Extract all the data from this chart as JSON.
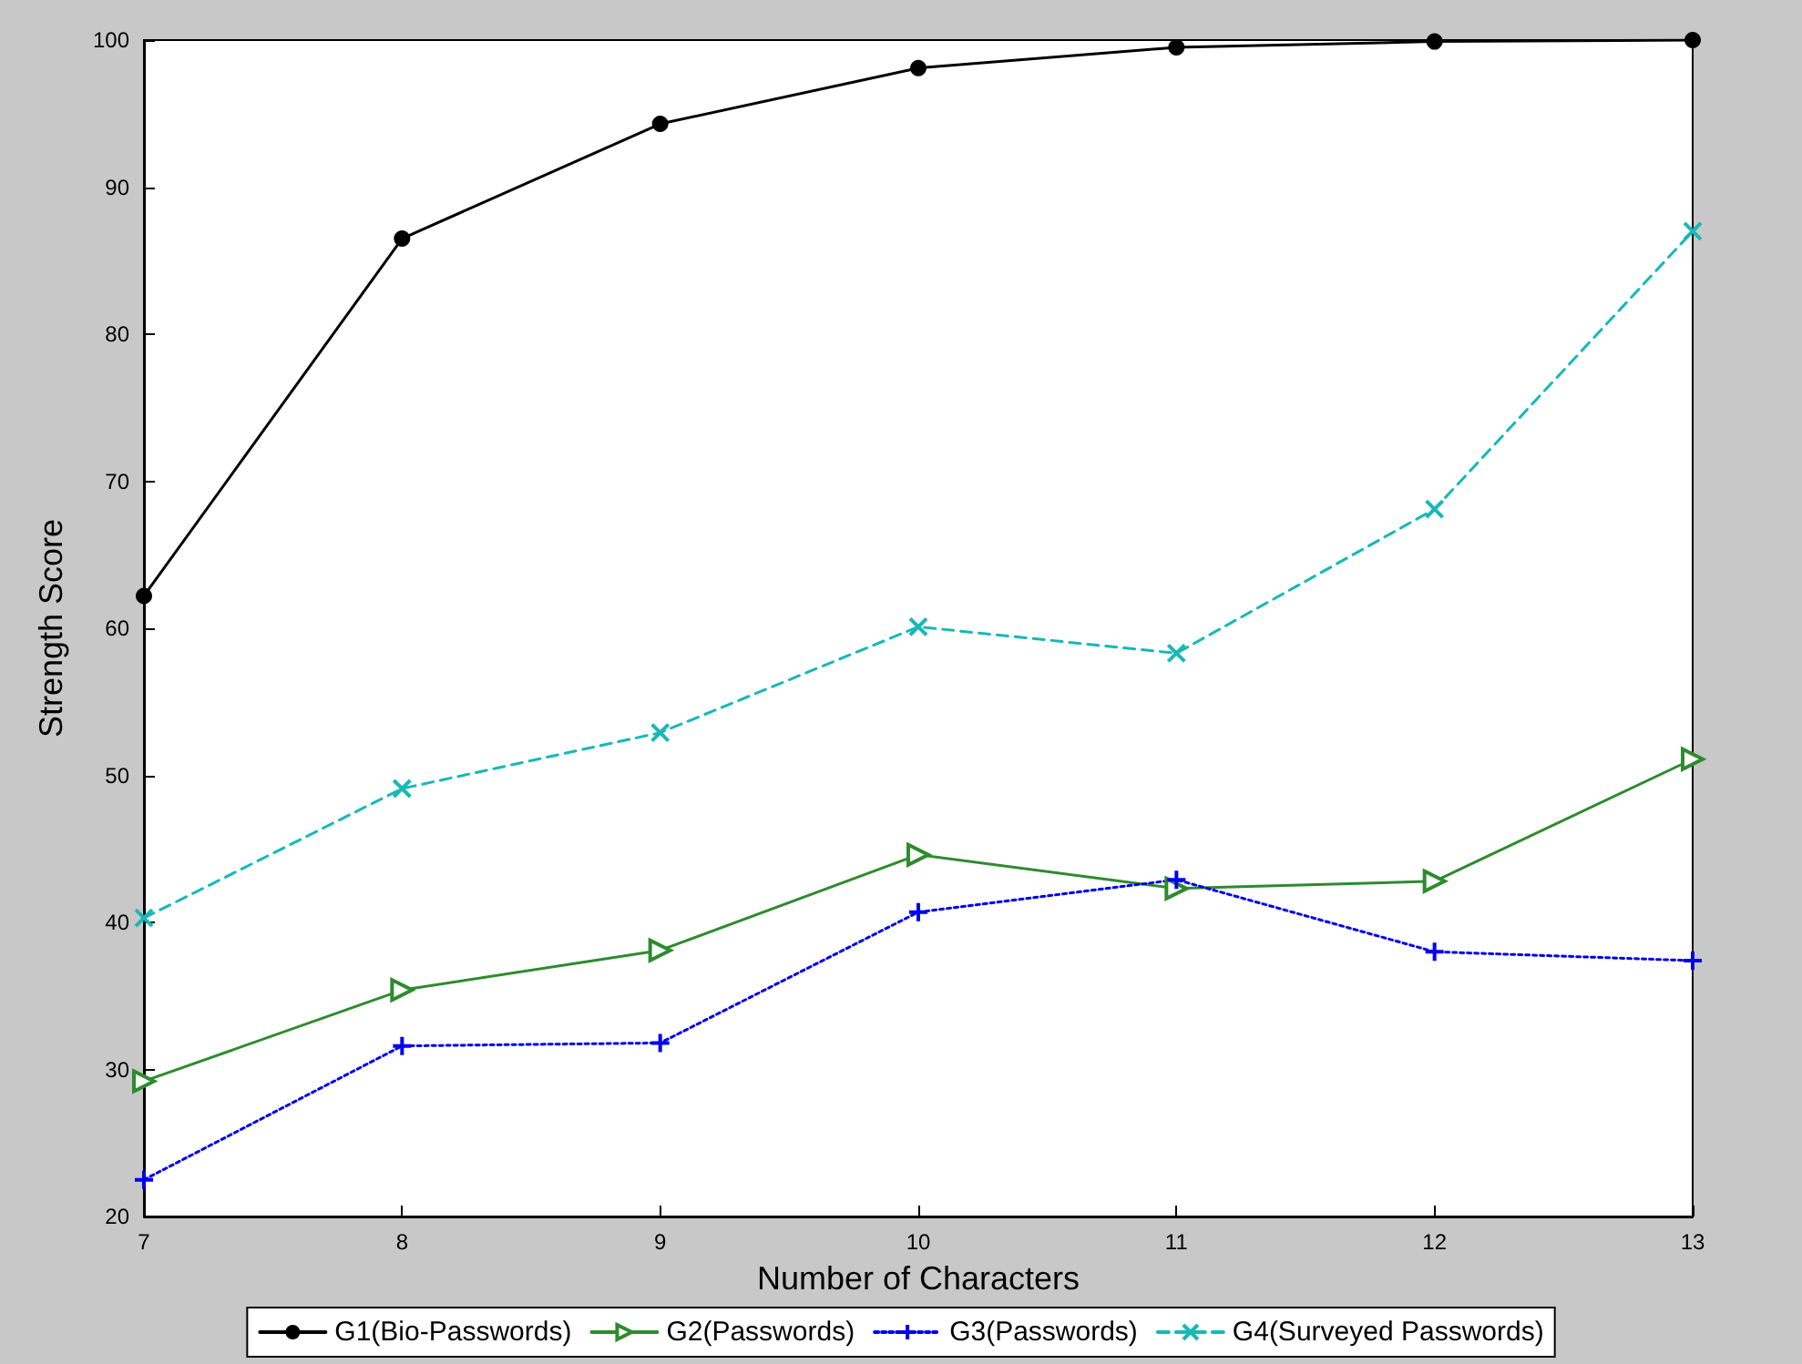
{
  "chart_data": {
    "type": "line",
    "xlabel": "Number of Characters",
    "ylabel": "Strength Score",
    "x": [
      7,
      8,
      9,
      10,
      11,
      12,
      13
    ],
    "xlim": [
      7,
      13
    ],
    "xticks": [
      7,
      8,
      9,
      10,
      11,
      12,
      13
    ],
    "ylim": [
      20,
      100
    ],
    "yticks": [
      20,
      30,
      40,
      50,
      60,
      70,
      80,
      90,
      100
    ],
    "grid": false,
    "legend": "bottom",
    "series": [
      {
        "name": "G1(Bio-Passwords)",
        "color": "#000000",
        "marker": "circle",
        "line_style": "solid",
        "values": [
          62.2,
          86.5,
          94.3,
          98.1,
          99.5,
          99.9,
          100
        ]
      },
      {
        "name": "G2(Passwords)",
        "color": "#2e8b2e",
        "marker": "triangle",
        "line_style": "solid",
        "values": [
          29.2,
          35.4,
          38.1,
          44.6,
          42.3,
          42.8,
          51.1
        ]
      },
      {
        "name": "G3(Passwords)",
        "color": "#0000ee",
        "marker": "plus",
        "line_style": "dotted",
        "values": [
          22.5,
          31.6,
          31.8,
          40.7,
          42.9,
          38.0,
          37.4
        ]
      },
      {
        "name": "G4(Surveyed Passwords)",
        "color": "#17b8b8",
        "marker": "cross",
        "line_style": "dashed",
        "values": [
          40.3,
          49.1,
          52.9,
          60.1,
          58.3,
          68.1,
          87.0
        ]
      }
    ]
  }
}
